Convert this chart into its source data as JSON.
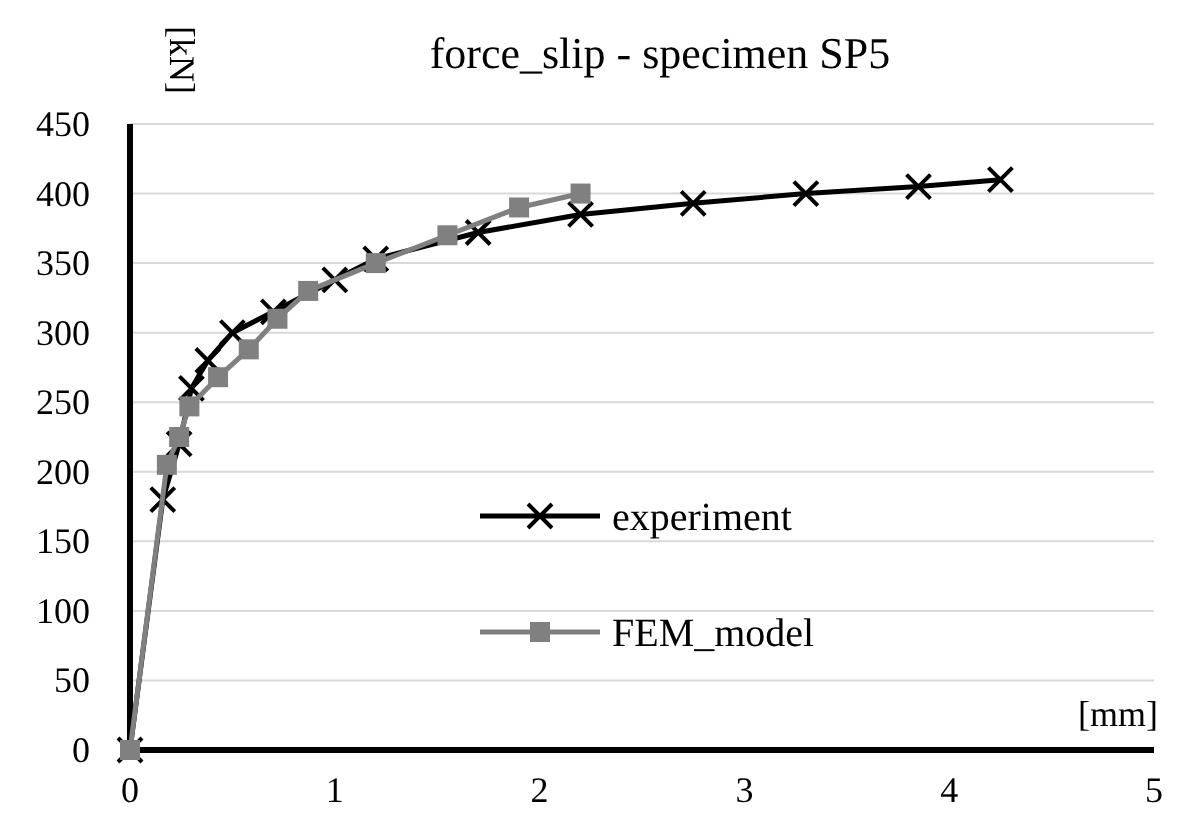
{
  "chart_data": {
    "type": "line",
    "title": "force_slip - specimen SP5",
    "xlabel": "[mm]",
    "ylabel": "[kN]",
    "xlim": [
      0,
      5
    ],
    "xticks": [
      0,
      1,
      2,
      3,
      4,
      5
    ],
    "ylim": [
      0,
      450
    ],
    "yticks": [
      0,
      50,
      100,
      150,
      200,
      250,
      300,
      350,
      400,
      450
    ],
    "grid": "y",
    "legend": "right",
    "line_style": "solid",
    "series": [
      {
        "name": "experiment",
        "color": "#000000",
        "marker": "cross",
        "x": [
          0,
          0.16,
          0.24,
          0.3,
          0.38,
          0.5,
          0.7,
          1.0,
          1.2,
          1.7,
          2.2,
          2.75,
          3.3,
          3.85,
          4.25
        ],
        "values": [
          0,
          180,
          220,
          260,
          280,
          300,
          315,
          338,
          353,
          372,
          385,
          393,
          400,
          405,
          410
        ]
      },
      {
        "name": "FEM_model",
        "color": "#808080",
        "marker": "square",
        "x": [
          0,
          0.18,
          0.24,
          0.29,
          0.43,
          0.58,
          0.72,
          0.87,
          1.2,
          1.55,
          1.9,
          2.2
        ],
        "values": [
          0,
          205,
          225,
          247,
          268,
          288,
          310,
          330,
          350,
          370,
          390,
          400
        ]
      }
    ]
  }
}
